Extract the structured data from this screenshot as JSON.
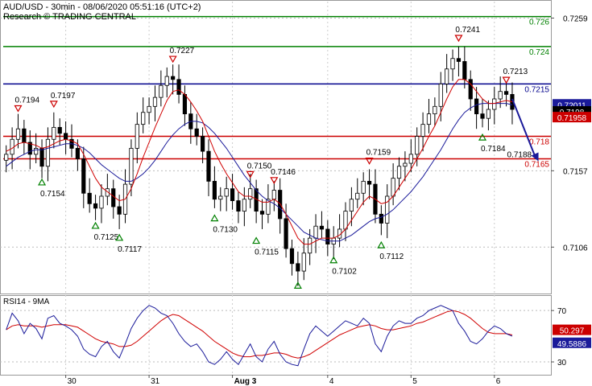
{
  "header": {
    "title": "AUD/USD - 30min - 08/06/2020 05:51:16 (UTC+2)",
    "subtitle": "Research © TRADING CENTRAL"
  },
  "colors": {
    "candle": "#000000",
    "ma_fast": "#d00000",
    "ma_slow": "#1a1a9a",
    "support_line": "#cc0000",
    "pivot_line": "#00008b",
    "resistance_line": "#008000",
    "target_arrow": "#1a1a9a",
    "marker_up": "#008000",
    "marker_down": "#cc0000",
    "rsi_line": "#1a1a9a",
    "rsi_ma": "#d00000",
    "badge_price": "#1a1a9a",
    "badge_current": "#000000",
    "badge_ma": "#cc0000",
    "badge_rsi": "#1a1a9a",
    "badge_rsi_ma": "#cc0000"
  },
  "chart_data": [
    {
      "type": "candlestick",
      "panel": "price",
      "ylim": [
        0.7075,
        0.727
      ],
      "y_ticks": [
        {
          "value": 0.7259,
          "label": "0.7259"
        },
        {
          "value": 0.7157,
          "label": "0.7157"
        },
        {
          "value": 0.7106,
          "label": "0.7106"
        }
      ],
      "x_ticks": [
        {
          "label": "30",
          "bar": 10
        },
        {
          "label": "31",
          "bar": 24
        },
        {
          "label": "Aug 3",
          "bar": 38
        },
        {
          "label": "4",
          "bar": 54
        },
        {
          "label": "5",
          "bar": 68
        },
        {
          "label": "6",
          "bar": 82
        }
      ],
      "pivots": [
        {
          "bar": 2,
          "value": 0.7194,
          "label": "0.7194",
          "type": "high"
        },
        {
          "bar": 6,
          "value": 0.7154,
          "label": "0.7154",
          "type": "low"
        },
        {
          "bar": 8,
          "value": 0.7197,
          "label": "0.7197",
          "type": "high"
        },
        {
          "bar": 15,
          "value": 0.7125,
          "label": "0.7125",
          "type": "low"
        },
        {
          "bar": 19,
          "value": 0.7117,
          "label": "0.7117",
          "type": "low"
        },
        {
          "bar": 28,
          "value": 0.7227,
          "label": "0.7227",
          "type": "high"
        },
        {
          "bar": 35,
          "value": 0.713,
          "label": "0.7130",
          "type": "low"
        },
        {
          "bar": 41,
          "value": 0.715,
          "label": "0.7150",
          "type": "high"
        },
        {
          "bar": 42,
          "value": 0.7115,
          "label": "0.7115",
          "type": "low"
        },
        {
          "bar": 45,
          "value": 0.7146,
          "label": "0.7146",
          "type": "high"
        },
        {
          "bar": 49,
          "value": 0.7085,
          "label": "",
          "type": "low"
        },
        {
          "bar": 55,
          "value": 0.7102,
          "label": "0.7102",
          "type": "low"
        },
        {
          "bar": 61,
          "value": 0.7159,
          "label": "0.7159",
          "type": "high"
        },
        {
          "bar": 63,
          "value": 0.7112,
          "label": "0.7112",
          "type": "low"
        },
        {
          "bar": 76,
          "value": 0.7241,
          "label": "0.7241",
          "type": "high"
        },
        {
          "bar": 80,
          "value": 0.7184,
          "label": "0.7184",
          "type": "low"
        },
        {
          "bar": 84,
          "value": 0.7213,
          "label": "0.7213",
          "type": "high"
        }
      ],
      "levels": [
        {
          "value": 0.726,
          "label": "0.726",
          "kind": "resistance"
        },
        {
          "value": 0.724,
          "label": "0.724",
          "kind": "resistance"
        },
        {
          "value": 0.7215,
          "label": "0.7215",
          "kind": "pivot"
        },
        {
          "value": 0.718,
          "label": "0.718",
          "kind": "support"
        },
        {
          "value": 0.7165,
          "label": "0.7165",
          "kind": "support"
        }
      ],
      "target": {
        "from_bar": 85,
        "from_value": 0.7205,
        "to_bar": 89,
        "to_value": 0.7165,
        "label": "0.7188"
      },
      "price_badges": [
        {
          "value": 0.72011,
          "label": "0.72011",
          "style": "price"
        },
        {
          "value": 0.7198,
          "label": "0.7198",
          "style": "current"
        },
        {
          "value": 0.71958,
          "label": "0.71958",
          "style": "ma"
        }
      ],
      "series": [
        {
          "name": "",
          "kind": "close",
          "values": [
            0.7168,
            0.7178,
            0.7185,
            0.7176,
            0.7168,
            0.7172,
            0.716,
            0.7178,
            0.7186,
            0.7182,
            0.7178,
            0.7172,
            0.7165,
            0.7142,
            0.7135,
            0.7132,
            0.714,
            0.7145,
            0.7133,
            0.7128,
            0.7148,
            0.7172,
            0.7188,
            0.7196,
            0.72,
            0.7206,
            0.7214,
            0.722,
            0.7218,
            0.7208,
            0.7195,
            0.7185,
            0.718,
            0.717,
            0.715,
            0.7138,
            0.714,
            0.7145,
            0.7137,
            0.713,
            0.7138,
            0.7145,
            0.713,
            0.7128,
            0.7138,
            0.7144,
            0.7125,
            0.7105,
            0.7095,
            0.709,
            0.7102,
            0.7112,
            0.712,
            0.7118,
            0.7108,
            0.7112,
            0.7118,
            0.713,
            0.7138,
            0.7142,
            0.715,
            0.7148,
            0.7128,
            0.7122,
            0.714,
            0.7152,
            0.716,
            0.7162,
            0.7168,
            0.718,
            0.7188,
            0.7195,
            0.72,
            0.7215,
            0.7225,
            0.7232,
            0.723,
            0.7218,
            0.7205,
            0.7195,
            0.7192,
            0.7198,
            0.7205,
            0.721,
            0.7208,
            0.7198
          ]
        }
      ],
      "ma_fast": [
        0.717,
        0.7172,
        0.7175,
        0.7176,
        0.7175,
        0.7174,
        0.7172,
        0.7173,
        0.7175,
        0.7177,
        0.7178,
        0.7177,
        0.7175,
        0.7168,
        0.716,
        0.7152,
        0.7146,
        0.7143,
        0.714,
        0.7137,
        0.7138,
        0.7145,
        0.7155,
        0.7166,
        0.7176,
        0.7186,
        0.7195,
        0.7204,
        0.721,
        0.7211,
        0.7208,
        0.7203,
        0.7197,
        0.719,
        0.718,
        0.717,
        0.7162,
        0.7155,
        0.7149,
        0.7143,
        0.714,
        0.714,
        0.7138,
        0.7136,
        0.7136,
        0.7138,
        0.7135,
        0.7128,
        0.712,
        0.7112,
        0.7108,
        0.7108,
        0.711,
        0.7112,
        0.7112,
        0.7112,
        0.7114,
        0.7118,
        0.7124,
        0.713,
        0.7136,
        0.714,
        0.7138,
        0.7135,
        0.7136,
        0.714,
        0.7146,
        0.7152,
        0.7158,
        0.7165,
        0.7172,
        0.718,
        0.7187,
        0.7196,
        0.7205,
        0.7213,
        0.7218,
        0.7218,
        0.7215,
        0.721,
        0.7205,
        0.7202,
        0.7202,
        0.7203,
        0.7204,
        0.7203
      ],
      "ma_slow": [
        0.716,
        0.7163,
        0.7166,
        0.7168,
        0.717,
        0.7171,
        0.7171,
        0.7172,
        0.7173,
        0.7174,
        0.7175,
        0.7175,
        0.7174,
        0.7172,
        0.7169,
        0.7165,
        0.7161,
        0.7158,
        0.7155,
        0.7152,
        0.715,
        0.715,
        0.7152,
        0.7155,
        0.7159,
        0.7164,
        0.717,
        0.7176,
        0.7181,
        0.7185,
        0.7188,
        0.719,
        0.719,
        0.7189,
        0.7186,
        0.7182,
        0.7177,
        0.7172,
        0.7166,
        0.716,
        0.7154,
        0.7149,
        0.7144,
        0.714,
        0.7137,
        0.7135,
        0.7132,
        0.7128,
        0.7124,
        0.712,
        0.7116,
        0.7114,
        0.7112,
        0.7111,
        0.711,
        0.711,
        0.711,
        0.7112,
        0.7114,
        0.7117,
        0.712,
        0.7123,
        0.7125,
        0.7126,
        0.7128,
        0.7131,
        0.7135,
        0.7139,
        0.7143,
        0.7148,
        0.7153,
        0.7159,
        0.7165,
        0.7171,
        0.7178,
        0.7185,
        0.7191,
        0.7196,
        0.7199,
        0.7201,
        0.7202,
        0.7202,
        0.7202,
        0.7202,
        0.7202,
        0.7201
      ]
    },
    {
      "type": "line",
      "panel": "rsi",
      "title": "RSI14 - 9MA",
      "ylim": [
        20,
        82
      ],
      "y_ticks": [
        {
          "value": 70,
          "label": "70"
        },
        {
          "value": 30,
          "label": "30"
        }
      ],
      "badges": [
        {
          "value": 50.297,
          "label": "50.297",
          "style": "rsi_ma"
        },
        {
          "value": 49.5886,
          "label": "49.5886",
          "style": "rsi"
        }
      ],
      "series": [
        {
          "name": "",
          "kind": "rsi",
          "values": [
            55,
            68,
            62,
            52,
            60,
            56,
            48,
            64,
            66,
            60,
            58,
            55,
            50,
            40,
            36,
            34,
            42,
            46,
            38,
            33,
            44,
            56,
            64,
            70,
            74,
            72,
            68,
            66,
            60,
            52,
            46,
            42,
            44,
            38,
            30,
            28,
            32,
            38,
            32,
            28,
            36,
            44,
            34,
            30,
            40,
            46,
            36,
            30,
            28,
            27,
            40,
            52,
            58,
            54,
            50,
            54,
            58,
            62,
            60,
            58,
            64,
            60,
            44,
            38,
            50,
            58,
            62,
            60,
            60,
            64,
            66,
            70,
            72,
            74,
            72,
            70,
            60,
            54,
            46,
            44,
            48,
            54,
            58,
            56,
            52,
            50
          ]
        },
        {
          "name": "",
          "kind": "rsi_ma",
          "values": [
            55,
            58,
            59,
            58,
            58,
            58,
            57,
            58,
            59,
            59,
            59,
            58,
            57,
            54,
            51,
            48,
            46,
            45,
            44,
            42,
            42,
            43,
            46,
            50,
            54,
            58,
            62,
            65,
            67,
            66,
            63,
            60,
            57,
            54,
            50,
            46,
            43,
            40,
            37,
            35,
            34,
            34,
            35,
            35,
            36,
            37,
            37,
            36,
            34,
            33,
            34,
            36,
            39,
            42,
            45,
            48,
            51,
            53,
            55,
            57,
            58,
            59,
            58,
            56,
            55,
            55,
            56,
            57,
            58,
            60,
            61,
            63,
            65,
            67,
            69,
            70,
            69,
            67,
            64,
            60,
            56,
            53,
            52,
            52,
            52,
            51
          ]
        }
      ]
    }
  ]
}
